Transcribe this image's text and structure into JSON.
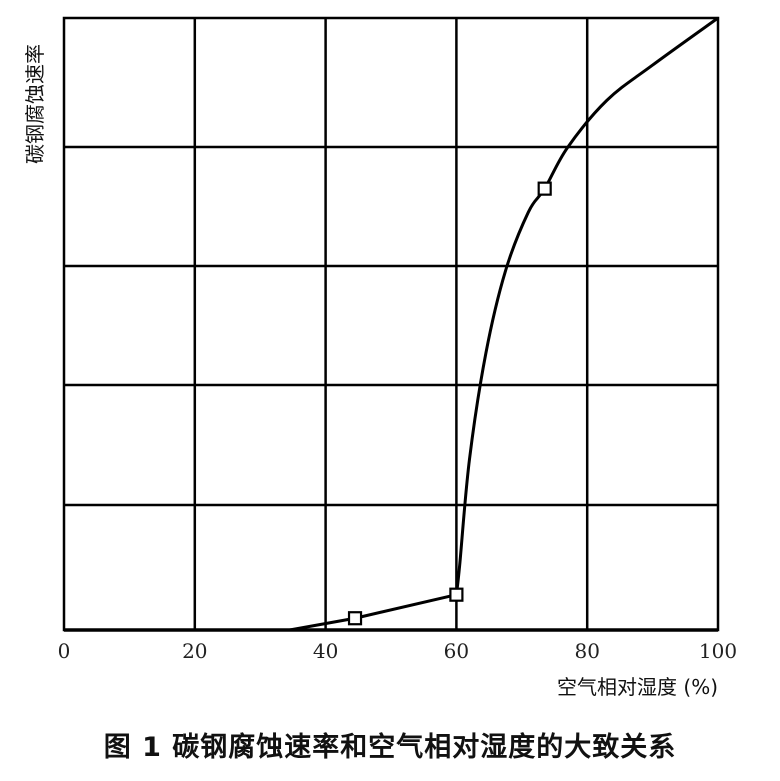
{
  "figure": {
    "caption": "图 1 碳钢腐蚀速率和空气相对湿度的大致关系"
  },
  "chart_data": {
    "type": "line",
    "xlabel": "空气相对湿度 (%)",
    "ylabel": "碳钢腐蚀速率",
    "x_ticks": [
      "0",
      "20",
      "40",
      "60",
      "80",
      "100"
    ],
    "xlim": [
      0,
      100
    ],
    "ylim": [
      0,
      5.2
    ],
    "grid": true,
    "series": [
      {
        "points": [
          {
            "x": 34.5,
            "y": 0.0
          },
          {
            "x": 44.5,
            "y": 0.1
          },
          {
            "x": 60.0,
            "y": 0.3
          },
          {
            "x": 60.5,
            "y": 0.55
          },
          {
            "x": 62.0,
            "y": 1.45
          },
          {
            "x": 64.5,
            "y": 2.35
          },
          {
            "x": 67.5,
            "y": 3.05
          },
          {
            "x": 71.0,
            "y": 3.55
          },
          {
            "x": 73.5,
            "y": 3.75
          },
          {
            "x": 77.0,
            "y": 4.1
          },
          {
            "x": 83.0,
            "y": 4.5
          },
          {
            "x": 90.0,
            "y": 4.8
          },
          {
            "x": 100.0,
            "y": 5.2
          }
        ],
        "markers": [
          {
            "x": 44.5,
            "y": 0.1
          },
          {
            "x": 60.0,
            "y": 0.3
          },
          {
            "x": 73.5,
            "y": 3.75
          }
        ]
      }
    ]
  }
}
